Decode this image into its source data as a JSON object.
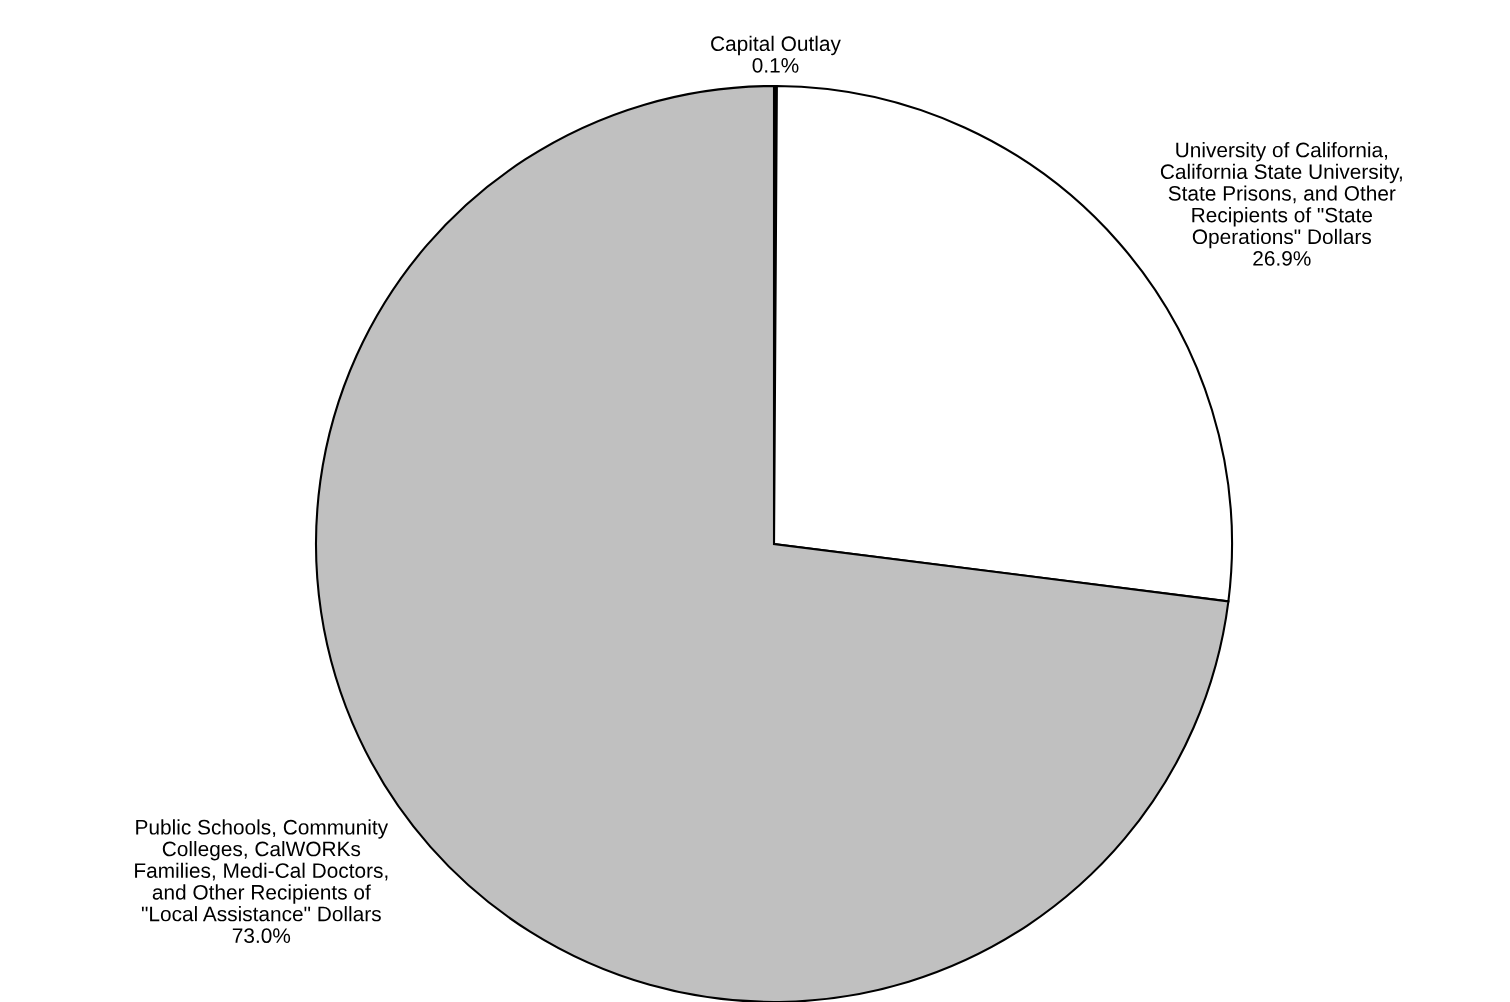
{
  "chart_data": {
    "type": "pie",
    "categories": [
      "Capital Outlay",
      "University of California,\nCalifornia State University,\nState Prisons, and Other\nRecipients of \"State\nOperations\" Dollars",
      "Public Schools, Community\nColleges, CalWORKs\nFamilies, Medi-Cal Doctors,\nand Other Recipients of\n\"Local Assistance\" Dollars"
    ],
    "values": [
      0.1,
      26.9,
      73.0
    ],
    "value_labels": [
      "0.1%",
      "26.9%",
      "73.0%"
    ],
    "colors": [
      "#000000",
      "#ffffff",
      "#c0c0c0"
    ]
  }
}
